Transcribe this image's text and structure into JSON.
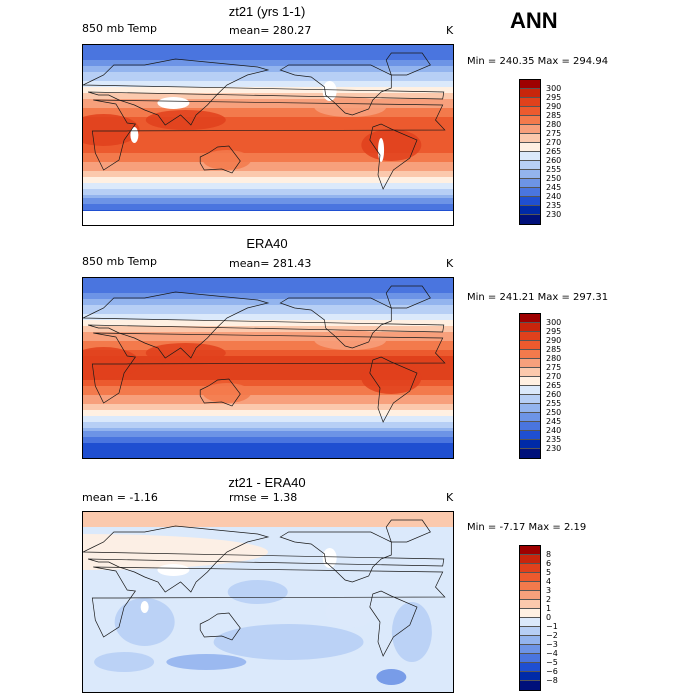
{
  "season": "ANN",
  "panels": [
    {
      "title": "zt21 (yrs 1-1)",
      "left": "850 mb Temp",
      "mid": "mean=  280.27",
      "right": "K",
      "stats": "Min = 240.35 Max = 294.94",
      "type": "temp"
    },
    {
      "title": "ERA40",
      "left": "850 mb Temp",
      "mid": "mean=  281.43",
      "right": "K",
      "stats": "Min = 241.21 Max = 297.31",
      "type": "temp"
    },
    {
      "title": "zt21 - ERA40",
      "left": "mean =   -1.16",
      "mid": "rmse =    1.38",
      "right": "K",
      "stats": "Min =  -7.17 Max =    2.19",
      "type": "diff"
    }
  ],
  "colorbar_temp": {
    "levels": [
      "300",
      "295",
      "290",
      "285",
      "280",
      "275",
      "270",
      "265",
      "260",
      "255",
      "250",
      "245",
      "240",
      "235",
      "230"
    ],
    "colors": [
      "#9e0000",
      "#c8250c",
      "#e0411c",
      "#ec5a2e",
      "#f37a4c",
      "#f7a07c",
      "#fbc9ad",
      "#fff0e2",
      "#dbe9fb",
      "#b7cff5",
      "#93b4ee",
      "#6d94e6",
      "#4a75df",
      "#1f4fd1",
      "#002aa8",
      "#00107a"
    ]
  },
  "colorbar_diff": {
    "levels": [
      "8",
      "6",
      "5",
      "4",
      "3",
      "2",
      "1",
      "0",
      "−1",
      "−2",
      "−3",
      "−4",
      "−5",
      "−6",
      "−8"
    ],
    "colors": [
      "#9e0000",
      "#c8250c",
      "#e0411c",
      "#ec5a2e",
      "#f37a4c",
      "#f7a07c",
      "#fbc9ad",
      "#fff0e2",
      "#dbe9fb",
      "#b7cff5",
      "#93b4ee",
      "#6d94e6",
      "#4a75df",
      "#1f4fd1",
      "#002aa8",
      "#00107a"
    ]
  },
  "chart_data": [
    {
      "type": "heatmap",
      "title": "zt21 (yrs 1-1)",
      "variable": "850 mb Temp",
      "units": "K",
      "mean": 280.27,
      "min": 240.35,
      "max": 294.94,
      "contour_levels": [
        230,
        235,
        240,
        245,
        250,
        255,
        260,
        265,
        270,
        275,
        280,
        285,
        290,
        295,
        300
      ]
    },
    {
      "type": "heatmap",
      "title": "ERA40",
      "variable": "850 mb Temp",
      "units": "K",
      "mean": 281.43,
      "min": 241.21,
      "max": 297.31,
      "contour_levels": [
        230,
        235,
        240,
        245,
        250,
        255,
        260,
        265,
        270,
        275,
        280,
        285,
        290,
        295,
        300
      ]
    },
    {
      "type": "heatmap",
      "title": "zt21 - ERA40",
      "units": "K",
      "mean": -1.16,
      "rmse": 1.38,
      "min": -7.17,
      "max": 2.19,
      "contour_levels": [
        -8,
        -6,
        -5,
        -4,
        -3,
        -2,
        -1,
        0,
        1,
        2,
        3,
        4,
        5,
        6,
        8
      ]
    }
  ]
}
